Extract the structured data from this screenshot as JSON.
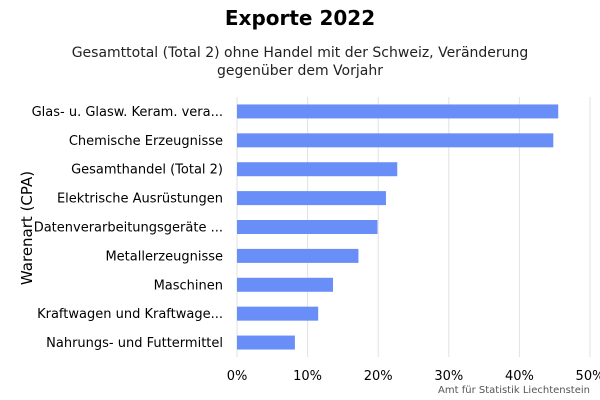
{
  "chart_data": {
    "type": "bar",
    "orientation": "horizontal",
    "title": "Exporte 2022",
    "subtitle": "Gesamttotal (Total 2) ohne Handel mit der Schweiz, Veränderung gegenüber dem Vorjahr",
    "ylabel": "Warenart (CPA)",
    "xlabel": "",
    "categories": [
      "Glas- u. Glasw. Keram. vera...",
      "Chemische Erzeugnisse",
      "Gesamthandel (Total 2)",
      "Elektrische Ausrüstungen",
      "Datenverarbeitungsgeräte ...",
      "Metallerzeugnisse",
      "Maschinen",
      "Kraftwagen und Kraftwage...",
      "Nahrungs- und Futtermittel"
    ],
    "values": [
      45.5,
      44.8,
      22.7,
      21.1,
      19.9,
      17.2,
      13.6,
      11.5,
      8.2
    ],
    "xlim": [
      0,
      50
    ],
    "xticks": [
      "0%",
      "10%",
      "20%",
      "30%",
      "40%",
      "50%"
    ],
    "grid": true,
    "bar_color": "#6a8ef7"
  },
  "credit": "Amt für Statistik Liechtenstein"
}
